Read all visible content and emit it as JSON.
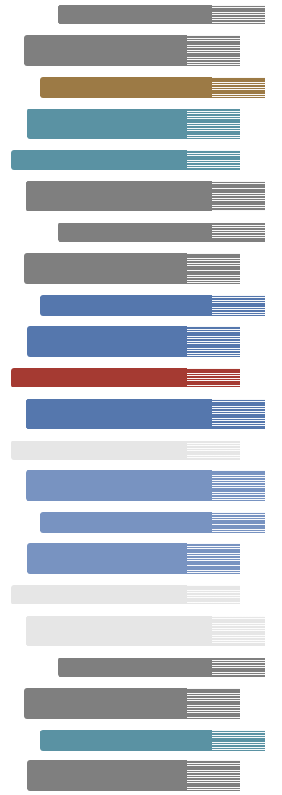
{
  "palette": {
    "gray": "#7f7f7f",
    "gold": "#9c7a45",
    "teal": "#5a92a3",
    "blue": "#5577ad",
    "blue_light": "#7893c1",
    "red": "#a53a32",
    "light_gray": "#e6e6e6"
  },
  "bars": [
    {
      "color": "gray"
    },
    {
      "color": "gray"
    },
    {
      "color": "gold"
    },
    {
      "color": "teal"
    },
    {
      "color": "teal"
    },
    {
      "color": "gray"
    },
    {
      "color": "gray"
    },
    {
      "color": "gray"
    },
    {
      "color": "blue"
    },
    {
      "color": "blue"
    },
    {
      "color": "red"
    },
    {
      "color": "blue"
    },
    {
      "color": "light_gray"
    },
    {
      "color": "blue_light"
    },
    {
      "color": "blue_light"
    },
    {
      "color": "blue_light"
    },
    {
      "color": "light_gray"
    },
    {
      "color": "light_gray"
    },
    {
      "color": "gray"
    },
    {
      "color": "gray"
    },
    {
      "color": "teal"
    },
    {
      "color": "gray"
    }
  ]
}
